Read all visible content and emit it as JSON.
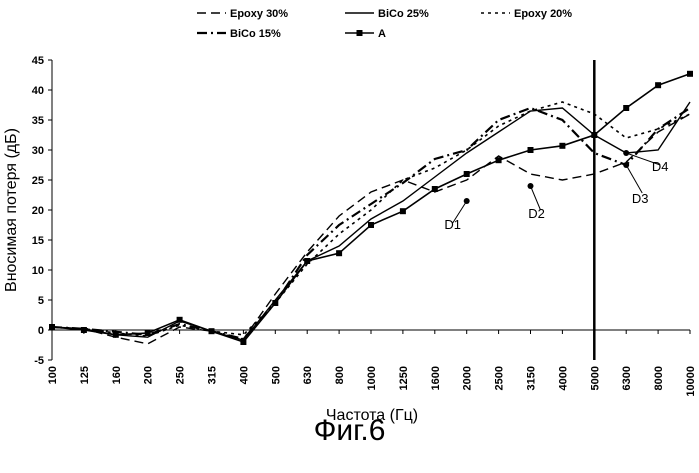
{
  "chart_data": {
    "type": "line",
    "xlabel": "Частота (Гц)",
    "ylabel": "Вносимая потеря (дБ)",
    "ylim": [
      -5,
      45
    ],
    "yticks": [
      -5,
      0,
      5,
      10,
      15,
      20,
      25,
      30,
      35,
      40,
      45
    ],
    "x": [
      "100",
      "125",
      "160",
      "200",
      "250",
      "315",
      "400",
      "500",
      "630",
      "800",
      "1000",
      "1250",
      "1600",
      "2000",
      "2500",
      "3150",
      "4000",
      "5000",
      "6300",
      "8000",
      "10000"
    ],
    "grid": false,
    "legend_position": "top",
    "series": [
      {
        "name": "Epoxy 30%",
        "style": "dash",
        "values": [
          0.5,
          0.2,
          -1.2,
          -2.3,
          0.5,
          -0.2,
          -1.5,
          6,
          13,
          19,
          23,
          25,
          23,
          25,
          29,
          26,
          25,
          26,
          28,
          33,
          36
        ]
      },
      {
        "name": "BiCo 25%",
        "style": "solid",
        "values": [
          0.5,
          0.2,
          -0.8,
          -1.2,
          1.5,
          -0.2,
          -1.7,
          5,
          11.5,
          14,
          18.5,
          21.5,
          25.5,
          29.5,
          33,
          36.5,
          37,
          32.5,
          29.5,
          30,
          38
        ]
      },
      {
        "name": "Epoxy 20%",
        "style": "dot",
        "values": [
          0.5,
          0.2,
          -0.5,
          -1,
          0.8,
          -0.2,
          -0.8,
          4.5,
          11,
          16,
          20,
          25,
          27,
          30,
          34,
          36.5,
          38,
          36,
          32,
          33.5,
          36
        ]
      },
      {
        "name": "BiCo 15%",
        "style": "dashdot",
        "values": [
          0.5,
          0.2,
          -0.3,
          -0.8,
          1,
          -0.2,
          -1.5,
          4.5,
          12.5,
          17.5,
          21,
          24.5,
          28.5,
          30,
          35,
          37,
          35,
          29.5,
          27.5,
          33.5,
          37
        ]
      },
      {
        "name": "A",
        "style": "solid-square",
        "values": [
          0.5,
          0,
          -0.8,
          -0.5,
          1.7,
          -0.2,
          -2,
          4.5,
          11.5,
          12.8,
          17.5,
          19.8,
          23.5,
          26,
          28.3,
          30,
          30.7,
          32.5,
          37,
          40.8,
          42.7
        ]
      }
    ],
    "vline_at": "5000",
    "annotations": [
      {
        "label": "D1",
        "x": "2000",
        "y": 21.5
      },
      {
        "label": "D2",
        "x": "3150",
        "y": 24
      },
      {
        "label": "D3",
        "x": "6300",
        "y": 27.5
      },
      {
        "label": "D4",
        "x": "6300",
        "y": 29.5
      }
    ]
  },
  "caption": "Фиг.6"
}
